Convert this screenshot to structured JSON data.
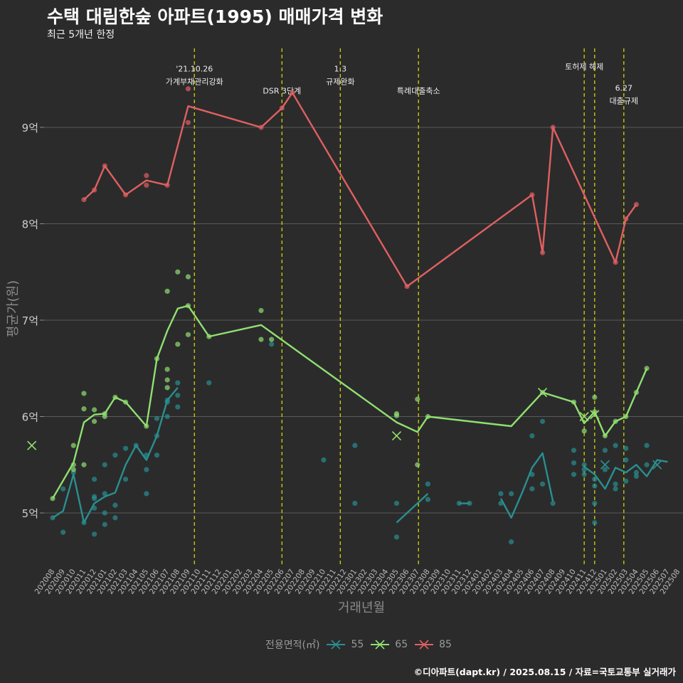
{
  "title": "수택 대림한숲 아파트(1995) 매매가격 변화",
  "subtitle": "최근 5개년 한정",
  "caption": "©디아파트(dapt.kr) / 2025.08.15 / 자료=국토교통부 실거래가",
  "legend": {
    "title": "전용면적(㎡)",
    "items": [
      {
        "label": "55",
        "color": "#2a8f8f"
      },
      {
        "label": "65",
        "color": "#90e070"
      },
      {
        "label": "85",
        "color": "#e06060"
      }
    ]
  },
  "chart_data": {
    "type": "line",
    "xlabel": "거래년월",
    "ylabel": "평균가(원)",
    "ylim": [
      4.5,
      9.8
    ],
    "yticks": [
      {
        "v": 5,
        "label": "5억"
      },
      {
        "v": 6,
        "label": "6억"
      },
      {
        "v": 7,
        "label": "7억"
      },
      {
        "v": 8,
        "label": "8억"
      },
      {
        "v": 9,
        "label": "9억"
      }
    ],
    "grid": true,
    "legend_position": "bottom",
    "categories": [
      "202008",
      "202009",
      "202010",
      "202011",
      "202012",
      "202101",
      "202102",
      "202103",
      "202104",
      "202105",
      "202106",
      "202107",
      "202108",
      "202109",
      "202110",
      "202111",
      "202112",
      "202201",
      "202202",
      "202203",
      "202204",
      "202205",
      "202206",
      "202207",
      "202208",
      "202209",
      "202210",
      "202211",
      "202212",
      "202301",
      "202302",
      "202303",
      "202304",
      "202305",
      "202306",
      "202307",
      "202308",
      "202309",
      "202310",
      "202311",
      "202312",
      "202401",
      "202402",
      "202403",
      "202404",
      "202405",
      "202406",
      "202407",
      "202408",
      "202409",
      "202410",
      "202411",
      "202412",
      "202501",
      "202502",
      "202503",
      "202504",
      "202505",
      "202506",
      "202507",
      "202508"
    ],
    "events": [
      {
        "x": 13.6,
        "label": "'21.10.26\n가계부채관리강화",
        "label_y": 9.58
      },
      {
        "x": 22.0,
        "label": "DSR 3단계",
        "label_y": 9.35
      },
      {
        "x": 27.6,
        "label": "1.3\n규제완화",
        "label_y": 9.58
      },
      {
        "x": 35.1,
        "label": "특례대출축소",
        "label_y": 9.35
      },
      {
        "x": 51.0,
        "label": "토허제 해제",
        "label_y": 9.6
      },
      {
        "x": 52.0,
        "label": "",
        "label_y": 9.6
      },
      {
        "x": 54.8,
        "label": "6.27\n대출규제",
        "label_y": 9.38
      }
    ],
    "series": [
      {
        "name": "55",
        "color": "#2a8f8f",
        "lines": [
          [
            [
              0,
              4.95
            ],
            [
              1,
              5.02
            ],
            [
              2,
              5.4
            ],
            [
              3,
              4.9
            ],
            [
              4,
              5.1
            ],
            [
              5,
              5.17
            ],
            [
              6,
              5.21
            ],
            [
              7,
              5.5
            ],
            [
              8,
              5.7
            ],
            [
              9,
              5.55
            ],
            [
              10,
              5.8
            ],
            [
              11,
              6.17
            ],
            [
              12,
              6.3
            ]
          ],
          [
            [
              33,
              4.9
            ],
            [
              34,
              5.0
            ],
            [
              35,
              5.1
            ],
            [
              36,
              5.2
            ]
          ],
          [
            [
              39,
              5.1
            ],
            [
              40,
              5.1
            ]
          ],
          [
            [
              43,
              5.15
            ],
            [
              44,
              4.95
            ],
            [
              45,
              5.2
            ],
            [
              46,
              5.47
            ],
            [
              47,
              5.62
            ],
            [
              48,
              5.12
            ]
          ],
          [
            [
              51,
              5.48
            ],
            [
              52,
              5.4
            ],
            [
              53,
              5.25
            ],
            [
              54,
              5.47
            ],
            [
              55,
              5.42
            ],
            [
              56,
              5.5
            ],
            [
              57,
              5.38
            ],
            [
              58,
              5.55
            ],
            [
              59,
              5.53
            ]
          ]
        ],
        "points": [
          [
            0,
            4.95
          ],
          [
            1,
            5.25
          ],
          [
            1,
            4.8
          ],
          [
            2,
            5.42
          ],
          [
            3,
            4.9
          ],
          [
            4,
            5.35
          ],
          [
            4,
            5.17
          ],
          [
            4,
            5.15
          ],
          [
            4,
            5.05
          ],
          [
            4,
            4.78
          ],
          [
            5,
            5.2
          ],
          [
            5,
            5.5
          ],
          [
            5,
            5.0
          ],
          [
            5,
            4.88
          ],
          [
            6,
            5.6
          ],
          [
            6,
            5.08
          ],
          [
            6,
            4.95
          ],
          [
            7,
            5.67
          ],
          [
            7,
            5.35
          ],
          [
            8,
            5.7
          ],
          [
            9,
            5.6
          ],
          [
            9,
            5.45
          ],
          [
            9,
            5.2
          ],
          [
            10,
            5.6
          ],
          [
            10,
            5.8
          ],
          [
            10,
            5.98
          ],
          [
            11,
            6.0
          ],
          [
            11,
            6.15
          ],
          [
            11,
            6.17
          ],
          [
            12,
            6.35
          ],
          [
            12,
            6.22
          ],
          [
            12,
            6.1
          ],
          [
            15,
            6.35
          ],
          [
            21,
            6.75
          ],
          [
            26,
            5.55
          ],
          [
            29,
            5.7
          ],
          [
            29,
            5.1
          ],
          [
            33,
            5.1
          ],
          [
            33,
            4.75
          ],
          [
            36,
            5.14
          ],
          [
            36,
            5.3
          ],
          [
            39,
            5.1
          ],
          [
            40,
            5.1
          ],
          [
            43,
            5.2
          ],
          [
            43,
            5.1
          ],
          [
            44,
            4.7
          ],
          [
            44,
            5.2
          ],
          [
            46,
            5.25
          ],
          [
            46,
            5.4
          ],
          [
            46,
            5.8
          ],
          [
            47,
            5.3
          ],
          [
            47,
            5.95
          ],
          [
            48,
            5.1
          ],
          [
            50,
            5.4
          ],
          [
            50,
            5.52
          ],
          [
            50,
            5.65
          ],
          [
            51,
            5.5
          ],
          [
            51,
            5.45
          ],
          [
            51,
            5.4
          ],
          [
            52,
            5.28
          ],
          [
            52,
            5.1
          ],
          [
            52,
            4.9
          ],
          [
            52,
            5.35
          ],
          [
            53,
            5.65
          ],
          [
            53,
            5.45
          ],
          [
            54,
            5.7
          ],
          [
            54,
            5.3
          ],
          [
            54,
            5.25
          ],
          [
            55,
            5.67
          ],
          [
            55,
            5.55
          ],
          [
            55,
            5.33
          ],
          [
            56,
            5.42
          ],
          [
            56,
            5.38
          ],
          [
            57,
            5.7
          ],
          [
            57,
            5.5
          ]
        ],
        "cross": [
          [
            53,
            5.5
          ],
          [
            58,
            5.5
          ]
        ]
      },
      {
        "name": "65",
        "color": "#90e070",
        "lines": [
          [
            [
              0,
              5.15
            ],
            [
              2,
              5.52
            ],
            [
              3,
              5.94
            ],
            [
              4,
              6.02
            ],
            [
              5,
              6.03
            ],
            [
              6,
              6.2
            ],
            [
              7,
              6.15
            ],
            [
              9,
              5.9
            ],
            [
              10,
              6.6
            ],
            [
              11,
              6.89
            ],
            [
              12,
              7.12
            ],
            [
              13,
              7.15
            ],
            [
              15,
              6.83
            ],
            [
              20,
              6.95
            ],
            [
              33,
              5.94
            ],
            [
              35,
              5.84
            ],
            [
              36,
              6.0
            ],
            [
              44,
              5.9
            ],
            [
              47,
              6.25
            ],
            [
              50,
              6.15
            ],
            [
              51,
              5.93
            ],
            [
              52,
              6.05
            ],
            [
              53,
              5.8
            ],
            [
              54,
              5.95
            ],
            [
              55,
              6.0
            ],
            [
              56,
              6.25
            ],
            [
              57,
              6.5
            ]
          ]
        ],
        "points": [
          [
            0,
            5.15
          ],
          [
            2,
            5.5
          ],
          [
            2,
            5.45
          ],
          [
            2,
            5.7
          ],
          [
            3,
            5.5
          ],
          [
            3,
            6.08
          ],
          [
            3,
            6.24
          ],
          [
            4,
            6.07
          ],
          [
            4,
            5.95
          ],
          [
            5,
            6.03
          ],
          [
            5,
            6.0
          ],
          [
            6,
            6.2
          ],
          [
            7,
            6.15
          ],
          [
            9,
            5.9
          ],
          [
            10,
            6.6
          ],
          [
            11,
            7.3
          ],
          [
            11,
            6.49
          ],
          [
            11,
            6.38
          ],
          [
            11,
            6.3
          ],
          [
            12,
            7.5
          ],
          [
            12,
            6.75
          ],
          [
            13,
            7.45
          ],
          [
            13,
            7.15
          ],
          [
            13,
            6.85
          ],
          [
            15,
            6.83
          ],
          [
            20,
            7.1
          ],
          [
            20,
            6.8
          ],
          [
            21,
            6.8
          ],
          [
            33,
            6.03
          ],
          [
            33,
            6.01
          ],
          [
            35,
            6.18
          ],
          [
            35,
            5.5
          ],
          [
            36,
            6.0
          ],
          [
            47,
            6.25
          ],
          [
            50,
            6.15
          ],
          [
            51,
            5.85
          ],
          [
            52,
            6.2
          ],
          [
            52,
            6.05
          ],
          [
            53,
            5.8
          ],
          [
            54,
            5.95
          ],
          [
            55,
            6.0
          ],
          [
            56,
            6.25
          ],
          [
            57,
            6.5
          ]
        ],
        "cross": [
          [
            -2,
            5.7
          ],
          [
            33,
            5.8
          ],
          [
            47,
            6.25
          ],
          [
            51,
            6.0
          ],
          [
            52,
            6.02
          ]
        ]
      },
      {
        "name": "85",
        "color": "#e06060",
        "lines": [
          [
            [
              3,
              8.25
            ],
            [
              4,
              8.35
            ],
            [
              5,
              8.6
            ],
            [
              7,
              8.3
            ],
            [
              9,
              8.45
            ],
            [
              11,
              8.4
            ],
            [
              13,
              9.22
            ],
            [
              20,
              9.0
            ],
            [
              22,
              9.2
            ],
            [
              23,
              9.36
            ],
            [
              34,
              7.35
            ],
            [
              46,
              8.3
            ],
            [
              47,
              7.7
            ],
            [
              48,
              9.0
            ],
            [
              54,
              7.6
            ],
            [
              55,
              8.05
            ],
            [
              56,
              8.2
            ]
          ]
        ],
        "points": [
          [
            3,
            8.25
          ],
          [
            4,
            8.35
          ],
          [
            5,
            8.6
          ],
          [
            7,
            8.3
          ],
          [
            9,
            8.5
          ],
          [
            9,
            8.4
          ],
          [
            11,
            8.4
          ],
          [
            13,
            9.4
          ],
          [
            13,
            9.05
          ],
          [
            20,
            9.0
          ],
          [
            22,
            9.2
          ],
          [
            23,
            9.36
          ],
          [
            34,
            7.35
          ],
          [
            46,
            8.3
          ],
          [
            47,
            7.7
          ],
          [
            48,
            9.0
          ],
          [
            54,
            7.6
          ],
          [
            55,
            8.05
          ],
          [
            56,
            8.2
          ]
        ],
        "cross": []
      }
    ]
  }
}
